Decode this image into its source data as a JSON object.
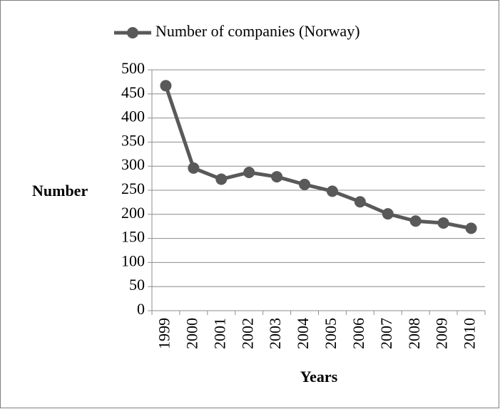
{
  "chart_data": {
    "type": "line",
    "categories": [
      "1999",
      "2000",
      "2001",
      "2002",
      "2003",
      "2004",
      "2005",
      "2006",
      "2007",
      "2008",
      "2009",
      "2010"
    ],
    "series": [
      {
        "name": "Number of companies (Norway)",
        "color": "#595959",
        "values": [
          467,
          296,
          273,
          287,
          278,
          262,
          248,
          226,
          201,
          186,
          182,
          171
        ]
      }
    ],
    "ylim": [
      0,
      500
    ],
    "yticks": [
      0,
      50,
      100,
      150,
      200,
      250,
      300,
      350,
      400,
      450,
      500
    ],
    "ylabel": "Number",
    "xlabel": "Years",
    "grid": true,
    "legend": "top"
  }
}
